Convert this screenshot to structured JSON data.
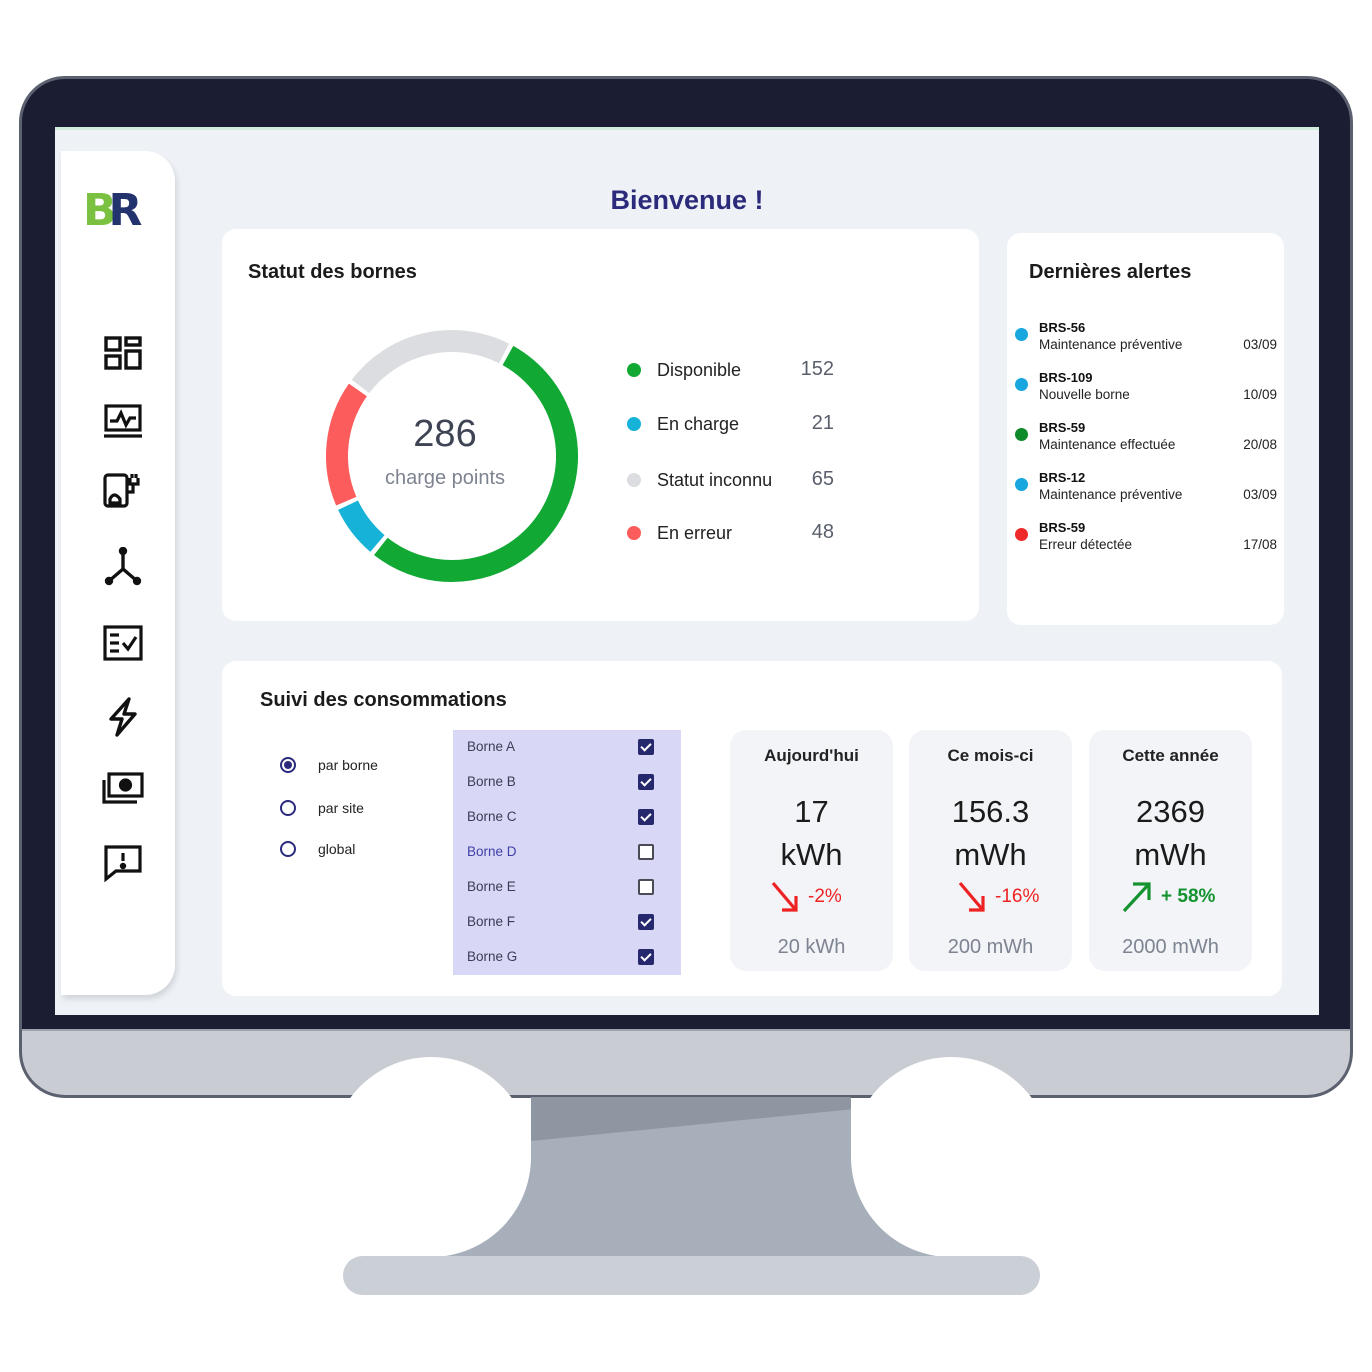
{
  "header": {
    "title": "Bienvenue !"
  },
  "logo": {
    "text_b": "B",
    "text_r": "R"
  },
  "sidebar": {
    "items": [
      {
        "icon": "dashboard-icon"
      },
      {
        "icon": "monitoring-icon"
      },
      {
        "icon": "charging-station-icon"
      },
      {
        "icon": "network-icon"
      },
      {
        "icon": "checklist-icon"
      },
      {
        "icon": "lightning-icon"
      },
      {
        "icon": "money-icon"
      },
      {
        "icon": "report-alert-icon"
      }
    ]
  },
  "status_card": {
    "title": "Statut des bornes",
    "total": "286",
    "total_label": "charge points",
    "legend": [
      {
        "label": "Disponible",
        "value": "152",
        "color": "#11a834"
      },
      {
        "label": "En charge",
        "value": "21",
        "color": "#17b2d8"
      },
      {
        "label": "Statut inconnu",
        "value": "65",
        "color": "#dcdde0"
      },
      {
        "label": "En erreur",
        "value": "48",
        "color": "#fd5c5c"
      }
    ]
  },
  "alerts_card": {
    "title": "Dernières alertes",
    "items": [
      {
        "id": "BRS-56",
        "desc": "Maintenance préventive",
        "date": "03/09",
        "color": "#17a6de"
      },
      {
        "id": "BRS-109",
        "desc": "Nouvelle borne",
        "date": "10/09",
        "color": "#17a6de"
      },
      {
        "id": "BRS-59",
        "desc": "Maintenance effectuée",
        "date": "20/08",
        "color": "#0e8a2c"
      },
      {
        "id": "BRS-12",
        "desc": "Maintenance préventive",
        "date": "03/09",
        "color": "#17a6de"
      },
      {
        "id": "BRS-59",
        "desc": "Erreur détectée",
        "date": "17/08",
        "color": "#ee2a2a"
      }
    ]
  },
  "consumption_card": {
    "title": "Suivi des consommations",
    "modes": [
      {
        "label": "par borne",
        "selected": true
      },
      {
        "label": "par site",
        "selected": false
      },
      {
        "label": "global",
        "selected": false
      }
    ],
    "bornes": [
      {
        "label": "Borne A",
        "checked": true
      },
      {
        "label": "Borne B",
        "checked": true
      },
      {
        "label": "Borne C",
        "checked": true
      },
      {
        "label": "Borne D",
        "checked": false
      },
      {
        "label": "Borne E",
        "checked": false
      },
      {
        "label": "Borne F",
        "checked": true
      },
      {
        "label": "Borne G",
        "checked": true
      }
    ],
    "stats": [
      {
        "label": "Aujourd'hui",
        "value": "17",
        "unit": "kWh",
        "trend": "-2%",
        "direction": "down",
        "reference": "20 kWh"
      },
      {
        "label": "Ce mois-ci",
        "value": "156.3",
        "unit": "mWh",
        "trend": "-16%",
        "direction": "down",
        "reference": "200 mWh"
      },
      {
        "label": "Cette année",
        "value": "2369",
        "unit": "mWh",
        "trend": "+ 58%",
        "direction": "up",
        "reference": "2000 mWh"
      }
    ]
  }
}
